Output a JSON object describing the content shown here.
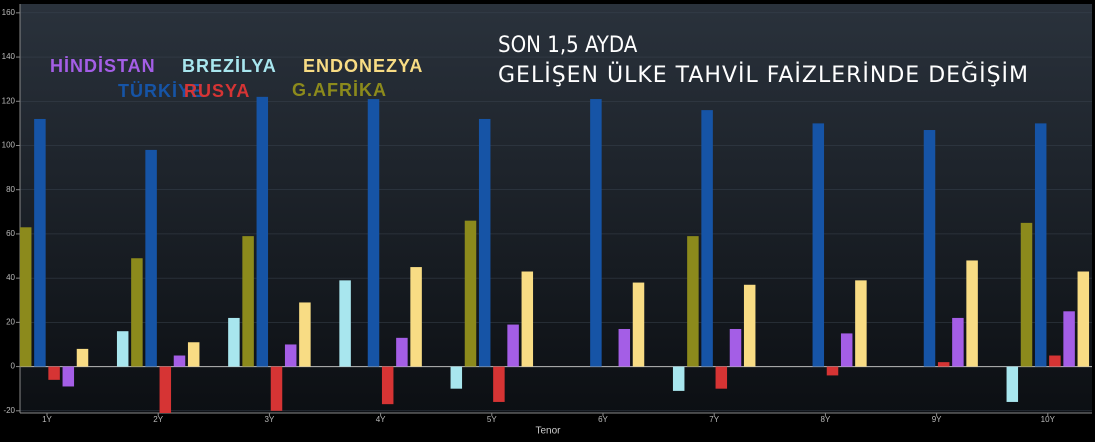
{
  "chart_data": {
    "type": "bar",
    "title": "SON 1,5 AYDA",
    "subtitle": "GELİŞEN ÜLKE TAHVİL FAİZLERİNDE DEĞİŞİM",
    "x_label": "Tenor",
    "categories": [
      "1Y",
      "2Y",
      "3Y",
      "4Y",
      "5Y",
      "6Y",
      "7Y",
      "8Y",
      "9Y",
      "10Y"
    ],
    "series": [
      {
        "name": "BREZİLYA",
        "color": "#a8e6ee",
        "values": [
          null,
          16,
          22,
          39,
          -10,
          null,
          -11,
          null,
          null,
          -16
        ]
      },
      {
        "name": "G.AFRİKA",
        "color": "#8c8a1c",
        "values": [
          63,
          49,
          59,
          null,
          66,
          null,
          59,
          null,
          null,
          65
        ]
      },
      {
        "name": "TÜRKİYE",
        "color": "#1654a6",
        "values": [
          112,
          98,
          122,
          121,
          112,
          121,
          116,
          110,
          107,
          110
        ]
      },
      {
        "name": "RUSYA",
        "color": "#d63434",
        "values": [
          -6,
          -21,
          -20,
          -17,
          -16,
          null,
          -10,
          -4,
          2,
          5
        ]
      },
      {
        "name": "HİNDİSTAN",
        "color": "#a45ee6",
        "values": [
          -9,
          5,
          10,
          13,
          19,
          17,
          17,
          15,
          22,
          25
        ]
      },
      {
        "name": "ENDONEZYA",
        "color": "#f8dc84",
        "values": [
          8,
          11,
          29,
          45,
          43,
          38,
          37,
          39,
          48,
          43
        ]
      }
    ],
    "ylim": [
      -21,
      164
    ],
    "yticks": [
      -20,
      0,
      20,
      40,
      60,
      80,
      100,
      120,
      140,
      160
    ],
    "grid": true
  }
}
